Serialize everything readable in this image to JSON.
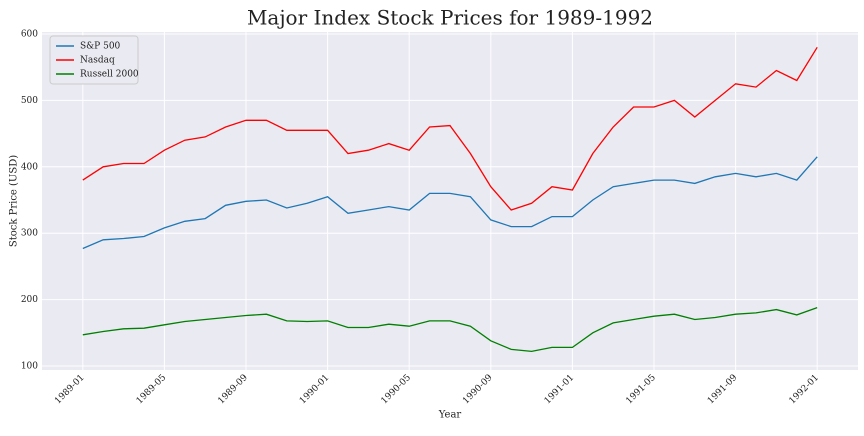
{
  "chart_data": {
    "type": "line",
    "title": "Major Index Stock Prices for 1989-1992",
    "xlabel": "Year",
    "ylabel": "Stock Price (USD)",
    "x": [
      "1989-01",
      "1989-02",
      "1989-03",
      "1989-04",
      "1989-05",
      "1989-06",
      "1989-07",
      "1989-08",
      "1989-09",
      "1989-10",
      "1989-11",
      "1989-12",
      "1990-01",
      "1990-02",
      "1990-03",
      "1990-04",
      "1990-05",
      "1990-06",
      "1990-07",
      "1990-08",
      "1990-09",
      "1990-10",
      "1990-11",
      "1990-12",
      "1991-01",
      "1991-02",
      "1991-03",
      "1991-04",
      "1991-05",
      "1991-06",
      "1991-07",
      "1991-08",
      "1991-09",
      "1991-10",
      "1991-11",
      "1991-12",
      "1992-01"
    ],
    "series": [
      {
        "name": "S&P 500",
        "color": "#1f77b4",
        "values": [
          277,
          290,
          292,
          295,
          308,
          318,
          322,
          342,
          348,
          350,
          338,
          345,
          355,
          330,
          335,
          340,
          335,
          360,
          360,
          355,
          320,
          310,
          310,
          325,
          325,
          350,
          370,
          375,
          380,
          380,
          375,
          385,
          390,
          385,
          390,
          380,
          415
        ]
      },
      {
        "name": "Nasdaq",
        "color": "#ff0000",
        "values": [
          380,
          400,
          405,
          405,
          425,
          440,
          445,
          460,
          470,
          470,
          455,
          455,
          455,
          420,
          425,
          435,
          425,
          460,
          462,
          420,
          370,
          335,
          345,
          370,
          365,
          420,
          460,
          490,
          490,
          500,
          475,
          500,
          525,
          520,
          545,
          530,
          580
        ]
      },
      {
        "name": "Russell 2000",
        "color": "#008000",
        "values": [
          147,
          152,
          156,
          157,
          162,
          167,
          170,
          173,
          176,
          178,
          168,
          167,
          168,
          158,
          158,
          163,
          160,
          168,
          168,
          160,
          138,
          125,
          122,
          128,
          128,
          150,
          165,
          170,
          175,
          178,
          170,
          173,
          178,
          180,
          185,
          177,
          188
        ]
      }
    ],
    "xlim": [
      "1988-11",
      "1992-03"
    ],
    "xticks": [
      "1989-01",
      "1989-05",
      "1989-09",
      "1990-01",
      "1990-05",
      "1990-09",
      "1991-01",
      "1991-05",
      "1991-09",
      "1992-01"
    ],
    "ylim": [
      94,
      603
    ],
    "yticks": [
      100,
      200,
      300,
      400,
      500,
      600
    ],
    "grid": true,
    "legend": "upper-left"
  }
}
